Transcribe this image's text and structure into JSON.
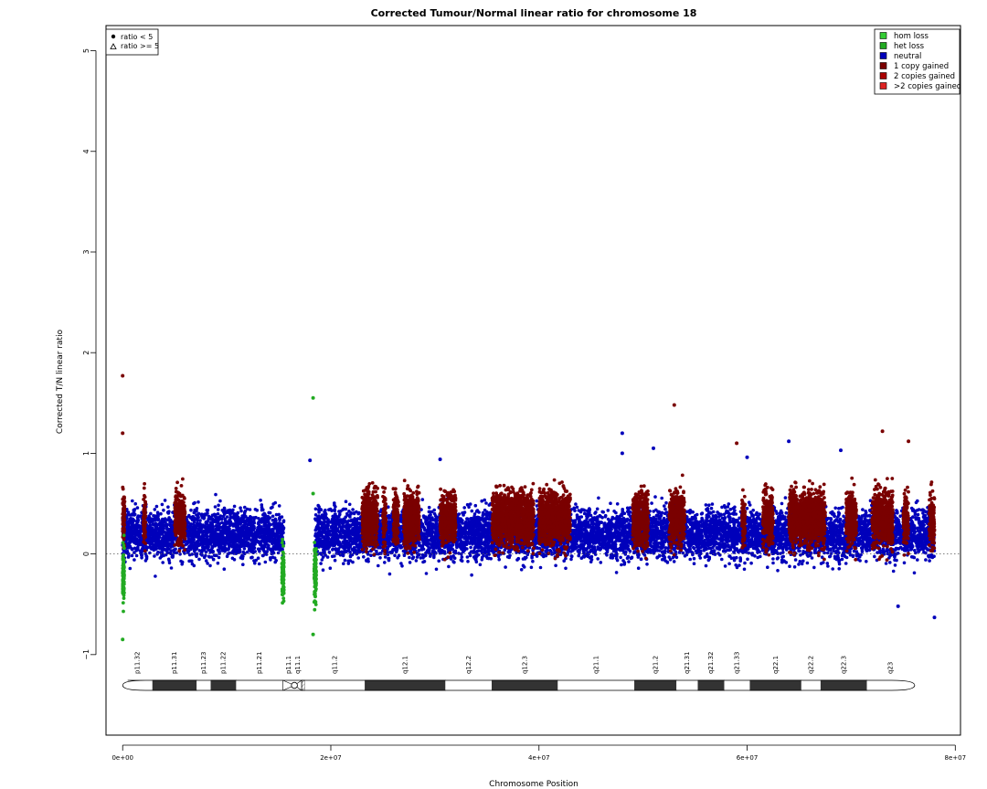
{
  "chart_data": {
    "type": "scatter",
    "title": "Corrected Tumour/Normal linear ratio for chromosome  18",
    "xlabel": "Chromosome Position",
    "ylabel": "Corrected T/N linear ratio",
    "xlim": [
      -1600000,
      80500000
    ],
    "ylim": [
      -1.8,
      5.25
    ],
    "x_ticks": [
      0,
      20000000,
      40000000,
      60000000,
      80000000
    ],
    "x_tick_labels": [
      "0e+00",
      "2e+07",
      "4e+07",
      "6e+07",
      "8e+07"
    ],
    "y_ticks": [
      -1,
      0,
      1,
      2,
      3,
      4,
      5
    ],
    "y_tick_labels": [
      "−1",
      "0",
      "1",
      "2",
      "3",
      "4",
      "5"
    ],
    "reference_line_y": 0,
    "shape_legend": [
      {
        "label": "ratio < 5",
        "shape": "circle"
      },
      {
        "label": "ratio >= 5",
        "shape": "triangle"
      }
    ],
    "legend": [
      {
        "label": "hom loss",
        "color": "#33cc33"
      },
      {
        "label": "het loss",
        "color": "#22aa22"
      },
      {
        "label": "neutral",
        "color": "#0000bb"
      },
      {
        "label": "1 copy gained",
        "color": "#7a0000"
      },
      {
        "label": "2 copies gained",
        "color": "#aa0000"
      },
      {
        "label": ">2 copies gained",
        "color": "#dd2222"
      }
    ],
    "series": [
      {
        "name": "neutral",
        "color": "#0000bb",
        "segments": [
          [
            0,
            15500000
          ],
          [
            18500000,
            78000000
          ]
        ],
        "points": [
          [
            18000000,
            0.93
          ],
          [
            30500000,
            0.94
          ],
          [
            48000000,
            1.2
          ],
          [
            48000000,
            1.0
          ],
          [
            51000000,
            1.05
          ],
          [
            60000000,
            0.96
          ],
          [
            64000000,
            1.12
          ],
          [
            69000000,
            1.03
          ],
          [
            74500000,
            -0.52
          ],
          [
            78000000,
            -0.63
          ]
        ]
      },
      {
        "name": "1 copy gained",
        "color": "#7a0000",
        "segments": [
          [
            0,
            200000
          ],
          [
            2000000,
            2200000
          ],
          [
            5000000,
            6000000
          ],
          [
            23000000,
            24500000
          ],
          [
            25000000,
            25300000
          ],
          [
            26000000,
            26500000
          ],
          [
            27000000,
            28500000
          ],
          [
            30500000,
            32000000
          ],
          [
            35500000,
            39500000
          ],
          [
            40000000,
            43000000
          ],
          [
            49000000,
            50500000
          ],
          [
            52500000,
            54000000
          ],
          [
            59500000,
            59800000
          ],
          [
            61500000,
            62500000
          ],
          [
            64000000,
            67500000
          ],
          [
            69500000,
            70500000
          ],
          [
            72000000,
            74000000
          ],
          [
            75000000,
            75500000
          ],
          [
            77500000,
            78000000
          ]
        ],
        "points": [
          [
            0,
            1.77
          ],
          [
            0,
            1.2
          ],
          [
            53000000,
            1.48
          ],
          [
            59000000,
            1.1
          ],
          [
            73000000,
            1.22
          ],
          [
            75500000,
            1.12
          ]
        ]
      },
      {
        "name": "het loss",
        "color": "#22aa22",
        "segments": [
          [
            0,
            150000
          ],
          [
            15300000,
            15500000
          ],
          [
            18400000,
            18600000
          ]
        ],
        "points": [
          [
            18300000,
            1.55
          ],
          [
            18300000,
            0.6
          ],
          [
            0,
            -0.85
          ],
          [
            18300000,
            -0.8
          ]
        ]
      }
    ]
  },
  "ideogram": {
    "bands": [
      {
        "name": "p11.32",
        "start": 0,
        "end": 2900000,
        "stain": "gneg"
      },
      {
        "name": "p11.31",
        "start": 2900000,
        "end": 7100000,
        "stain": "gpos"
      },
      {
        "name": "p11.23",
        "start": 7100000,
        "end": 8500000,
        "stain": "gneg"
      },
      {
        "name": "p11.22",
        "start": 8500000,
        "end": 10900000,
        "stain": "gpos"
      },
      {
        "name": "p11.21",
        "start": 10900000,
        "end": 15400000,
        "stain": "gneg"
      },
      {
        "name": "p11.1",
        "start": 15400000,
        "end": 16500000,
        "stain": "acen"
      },
      {
        "name": "q11.1",
        "start": 16500000,
        "end": 17200000,
        "stain": "acen"
      },
      {
        "name": "",
        "start": 17200000,
        "end": 17500000,
        "stain": "gvar"
      },
      {
        "name": "q11.2",
        "start": 17500000,
        "end": 23300000,
        "stain": "gneg"
      },
      {
        "name": "q12.1",
        "start": 23300000,
        "end": 31000000,
        "stain": "gpos"
      },
      {
        "name": "q12.2",
        "start": 31000000,
        "end": 35500000,
        "stain": "gneg"
      },
      {
        "name": "q12.3",
        "start": 35500000,
        "end": 41800000,
        "stain": "gpos"
      },
      {
        "name": "q21.1",
        "start": 41800000,
        "end": 49200000,
        "stain": "gneg"
      },
      {
        "name": "q21.2",
        "start": 49200000,
        "end": 53200000,
        "stain": "gpos"
      },
      {
        "name": "q21.31",
        "start": 53200000,
        "end": 55300000,
        "stain": "gneg"
      },
      {
        "name": "q21.32",
        "start": 55300000,
        "end": 57800000,
        "stain": "gpos"
      },
      {
        "name": "q21.33",
        "start": 57800000,
        "end": 60300000,
        "stain": "gneg"
      },
      {
        "name": "q22.1",
        "start": 60300000,
        "end": 65200000,
        "stain": "gpos"
      },
      {
        "name": "q22.2",
        "start": 65200000,
        "end": 67100000,
        "stain": "gneg"
      },
      {
        "name": "q22.3",
        "start": 67100000,
        "end": 71500000,
        "stain": "gpos"
      },
      {
        "name": "q23",
        "start": 71500000,
        "end": 76100000,
        "stain": "gneg"
      }
    ]
  }
}
